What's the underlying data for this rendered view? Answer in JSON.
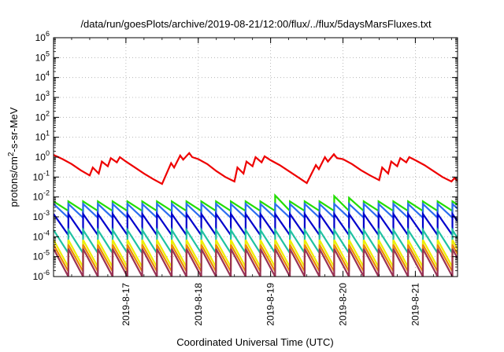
{
  "chart_data": {
    "type": "line",
    "title": "/data/run/goesPlots/archive/2019-08-21/12:00/flux/../flux/5daysMarsFluxes.txt",
    "xlabel": "Coordinated Universal Time (UTC)",
    "ylabel": {
      "prefix": "protons/cm",
      "superscript": "2",
      "suffix": "-s-sr-MeV"
    },
    "yscale": "log",
    "ylim_exponents": [
      -6,
      6
    ],
    "y_ticks": [
      {
        "base": "10",
        "exp": "-6"
      },
      {
        "base": "10",
        "exp": "-5"
      },
      {
        "base": "10",
        "exp": "-4"
      },
      {
        "base": "10",
        "exp": "-3"
      },
      {
        "base": "10",
        "exp": "-2"
      },
      {
        "base": "10",
        "exp": "-1"
      },
      {
        "base": "10",
        "exp": "0"
      },
      {
        "base": "10",
        "exp": "1"
      },
      {
        "base": "10",
        "exp": "2"
      },
      {
        "base": "10",
        "exp": "3"
      },
      {
        "base": "10",
        "exp": "4"
      },
      {
        "base": "10",
        "exp": "5"
      },
      {
        "base": "10",
        "exp": "6"
      }
    ],
    "x_start": "2019-8-16 00:00",
    "x_end": "2019-8-21 14:00",
    "x_ticks": [
      {
        "label": "2019-8-17",
        "value": "2019-8-17 00:00"
      },
      {
        "label": "2019-8-18",
        "value": "2019-8-18 00:00"
      },
      {
        "label": "2019-8-19",
        "value": "2019-8-19 00:00"
      },
      {
        "label": "2019-8-20",
        "value": "2019-8-20 00:00"
      },
      {
        "label": "2019-8-21",
        "value": "2019-8-21 00:00"
      }
    ],
    "grid": true,
    "series": [
      {
        "color": "#ee0000",
        "x": [
          "2019-8-16 00:00",
          "2019-8-16 03:00",
          "2019-8-16 06:00",
          "2019-8-16 09:00",
          "2019-8-16 12:00",
          "2019-8-16 13:00",
          "2019-8-16 15:00",
          "2019-8-16 16:00",
          "2019-8-16 18:00",
          "2019-8-16 19:00",
          "2019-8-16 21:00",
          "2019-8-16 22:00",
          "2019-8-17 00:00",
          "2019-8-17 03:00",
          "2019-8-17 06:00",
          "2019-8-17 09:00",
          "2019-8-17 12:00",
          "2019-8-17 15:00",
          "2019-8-17 16:00",
          "2019-8-17 18:00",
          "2019-8-17 19:00",
          "2019-8-17 21:00",
          "2019-8-17 22:00",
          "2019-8-18 00:00",
          "2019-8-18 03:00",
          "2019-8-18 06:00",
          "2019-8-18 09:00",
          "2019-8-18 12:00",
          "2019-8-18 13:00",
          "2019-8-18 15:00",
          "2019-8-18 16:00",
          "2019-8-18 18:00",
          "2019-8-18 19:00",
          "2019-8-18 21:00",
          "2019-8-18 22:00",
          "2019-8-19 00:00",
          "2019-8-19 03:00",
          "2019-8-19 06:00",
          "2019-8-19 09:00",
          "2019-8-19 12:00",
          "2019-8-19 15:00",
          "2019-8-19 16:00",
          "2019-8-19 18:00",
          "2019-8-19 19:00",
          "2019-8-19 21:00",
          "2019-8-19 22:00",
          "2019-8-20 00:00",
          "2019-8-20 03:00",
          "2019-8-20 06:00",
          "2019-8-20 09:00",
          "2019-8-20 12:00",
          "2019-8-20 13:00",
          "2019-8-20 15:00",
          "2019-8-20 16:00",
          "2019-8-20 18:00",
          "2019-8-20 19:00",
          "2019-8-20 21:00",
          "2019-8-20 22:00",
          "2019-8-21 00:00",
          "2019-8-21 03:00",
          "2019-8-21 06:00",
          "2019-8-21 09:00",
          "2019-8-21 12:00",
          "2019-8-21 13:00",
          "2019-8-21 14:00"
        ],
        "y": [
          1.3,
          0.8,
          0.45,
          0.22,
          0.12,
          0.3,
          0.15,
          0.6,
          0.35,
          0.9,
          0.55,
          1.0,
          0.6,
          0.3,
          0.15,
          0.08,
          0.045,
          0.5,
          0.3,
          1.2,
          0.75,
          1.6,
          1.0,
          0.8,
          0.45,
          0.2,
          0.1,
          0.06,
          0.3,
          0.15,
          0.6,
          0.35,
          1.0,
          0.55,
          1.1,
          0.7,
          0.4,
          0.2,
          0.1,
          0.05,
          0.4,
          0.25,
          1.0,
          0.6,
          1.4,
          0.9,
          0.8,
          0.45,
          0.22,
          0.12,
          0.07,
          0.3,
          0.15,
          0.6,
          0.35,
          0.9,
          0.55,
          1.0,
          0.7,
          0.4,
          0.2,
          0.1,
          0.06,
          0.09,
          0.065
        ]
      },
      {
        "color": "#22dd00",
        "pattern": "sawtooth",
        "x_start": "2019-8-16 00:00",
        "x_end": "2019-8-21 14:00",
        "period_hours": 4.9,
        "peak": 0.006,
        "trough": 0.002,
        "spikes": [
          {
            "x": "2019-8-19 01:00",
            "y": 0.012
          },
          {
            "x": "2019-8-19 19:00",
            "y": 0.011
          },
          {
            "x": "2019-8-20 01:00",
            "y": 0.009
          }
        ]
      },
      {
        "color": "#2b6cf0",
        "pattern": "sawtooth",
        "x_start": "2019-8-16 00:00",
        "x_end": "2019-8-21 14:00",
        "period_hours": 4.9,
        "peak": 0.0045,
        "trough": 0.0009
      },
      {
        "color": "#0000cc",
        "pattern": "sawtooth",
        "x_start": "2019-8-16 00:00",
        "x_end": "2019-8-21 14:00",
        "period_hours": 4.9,
        "peak": 0.0014,
        "trough": 0.00012
      },
      {
        "color": "#1fc2a0",
        "pattern": "sawtooth",
        "x_start": "2019-8-16 00:00",
        "x_end": "2019-8-21 14:00",
        "period_hours": 4.9,
        "peak": 0.00022,
        "trough": 1.5e-05
      },
      {
        "color": "#eeee00",
        "pattern": "sawtooth",
        "x_start": "2019-8-16 00:00",
        "x_end": "2019-8-21 14:00",
        "period_hours": 4.9,
        "peak": 7e-05,
        "trough": 3e-06
      },
      {
        "color": "#ee8800",
        "pattern": "sawtooth",
        "x_start": "2019-8-16 00:00",
        "x_end": "2019-8-21 14:00",
        "period_hours": 4.9,
        "peak": 4e-05,
        "trough": 1.8e-06
      },
      {
        "color": "#993355",
        "pattern": "sawtooth",
        "x_start": "2019-8-16 00:00",
        "x_end": "2019-8-21 14:00",
        "period_hours": 4.9,
        "peak": 2.5e-05,
        "trough": 1e-06
      }
    ]
  }
}
